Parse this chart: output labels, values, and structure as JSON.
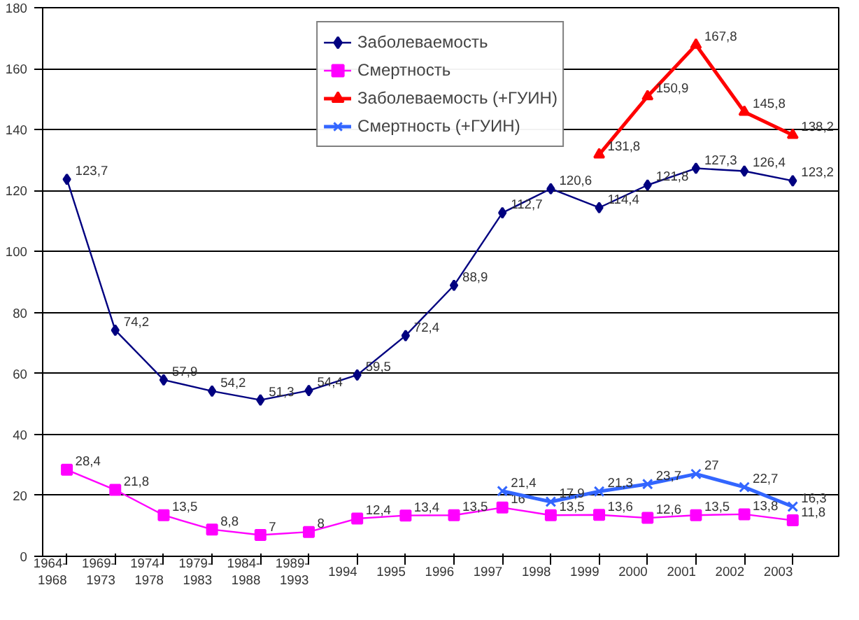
{
  "chart_data": {
    "type": "line",
    "categories": [
      "1964-\n1968",
      "1969-\n1973",
      "1974-\n1978",
      "1979-\n1983",
      "1984-\n1988",
      "1989-\n1993",
      "1994",
      "1995",
      "1996",
      "1997",
      "1998",
      "1999",
      "2000",
      "2001",
      "2002",
      "2003"
    ],
    "series": [
      {
        "name": "Заболеваемость",
        "color": "#000080",
        "marker": "diamond",
        "values": [
          123.7,
          74.2,
          57.9,
          54.2,
          51.3,
          54.4,
          59.5,
          72.4,
          88.9,
          112.7,
          120.6,
          114.4,
          121.8,
          127.3,
          126.4,
          123.2
        ],
        "value_labels": [
          "123,7",
          "74,2",
          "57,9",
          "54,2",
          "51,3",
          "54,4",
          "59,5",
          "72,4",
          "88,9",
          "112,7",
          "120,6",
          "114,4",
          "121,8",
          "127,3",
          "126,4",
          "123,2"
        ]
      },
      {
        "name": "Смертность",
        "color": "#ff00ff",
        "marker": "square",
        "values": [
          28.4,
          21.8,
          13.5,
          8.8,
          7,
          8,
          12.4,
          13.4,
          13.5,
          16,
          13.5,
          13.6,
          12.6,
          13.5,
          13.8,
          11.8
        ],
        "value_labels": [
          "28,4",
          "21,8",
          "13,5",
          "8,8",
          "7",
          "8",
          "12,4",
          "13,4",
          "13,5",
          "16",
          "13,5",
          "13,6",
          "12,6",
          "13,5",
          "13,8",
          "11,8"
        ]
      },
      {
        "name": "Заболеваемость (+ГУИН)",
        "color": "#ff0000",
        "marker": "triangle",
        "values": [
          null,
          null,
          null,
          null,
          null,
          null,
          null,
          null,
          null,
          null,
          null,
          131.8,
          150.9,
          167.8,
          145.8,
          138.2
        ],
        "value_labels": [
          null,
          null,
          null,
          null,
          null,
          null,
          null,
          null,
          null,
          null,
          null,
          "131,8",
          "150,9",
          "167,8",
          "145,8",
          "138,2"
        ]
      },
      {
        "name": "Смертность (+ГУИН)",
        "color": "#3366ff",
        "marker": "cross",
        "values": [
          null,
          null,
          null,
          null,
          null,
          null,
          null,
          null,
          null,
          21.4,
          17.9,
          21.3,
          23.7,
          27,
          22.7,
          16.3
        ],
        "value_labels": [
          null,
          null,
          null,
          null,
          null,
          null,
          null,
          null,
          null,
          "21,4",
          "17,9",
          "21,3",
          "23,7",
          "27",
          "22,7",
          "16,3"
        ]
      }
    ],
    "ylim": [
      0,
      180
    ],
    "yticks": [
      0,
      20,
      40,
      60,
      80,
      100,
      120,
      140,
      160,
      180
    ],
    "grid": "y",
    "legend": "top",
    "line_style": "solid"
  }
}
